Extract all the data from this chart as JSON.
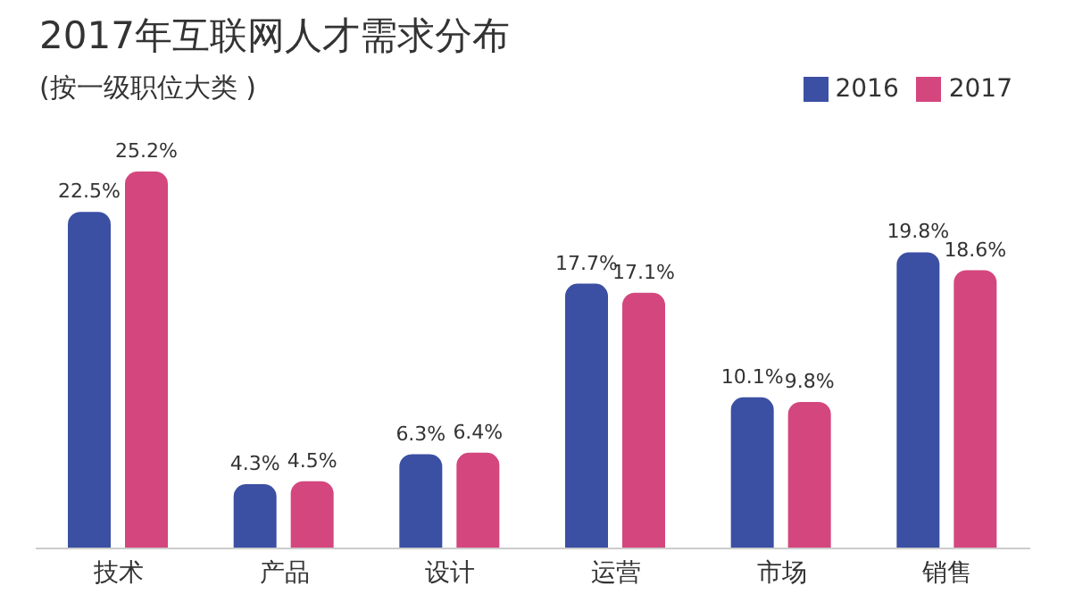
{
  "chart_data": {
    "type": "bar",
    "title": "2017年互联网人才需求分布",
    "subtitle": "(按一级职位大类 )",
    "categories": [
      "技术",
      "产品",
      "设计",
      "运营",
      "市场",
      "销售"
    ],
    "series": [
      {
        "name": "2016",
        "color": "#3b4fa3",
        "values": [
          22.5,
          4.3,
          6.3,
          17.7,
          10.1,
          19.8
        ],
        "value_labels": [
          "22.5%",
          "4.3%",
          "6.3%",
          "17.7%",
          "10.1%",
          "19.8%"
        ]
      },
      {
        "name": "2017",
        "color": "#d4467e",
        "values": [
          25.2,
          4.5,
          6.4,
          17.1,
          9.8,
          18.6
        ],
        "value_labels": [
          "25.2%",
          "4.5%",
          "6.4%",
          "17.1%",
          "9.8%",
          "18.6%"
        ]
      }
    ],
    "legend": "top right",
    "grid": false
  }
}
